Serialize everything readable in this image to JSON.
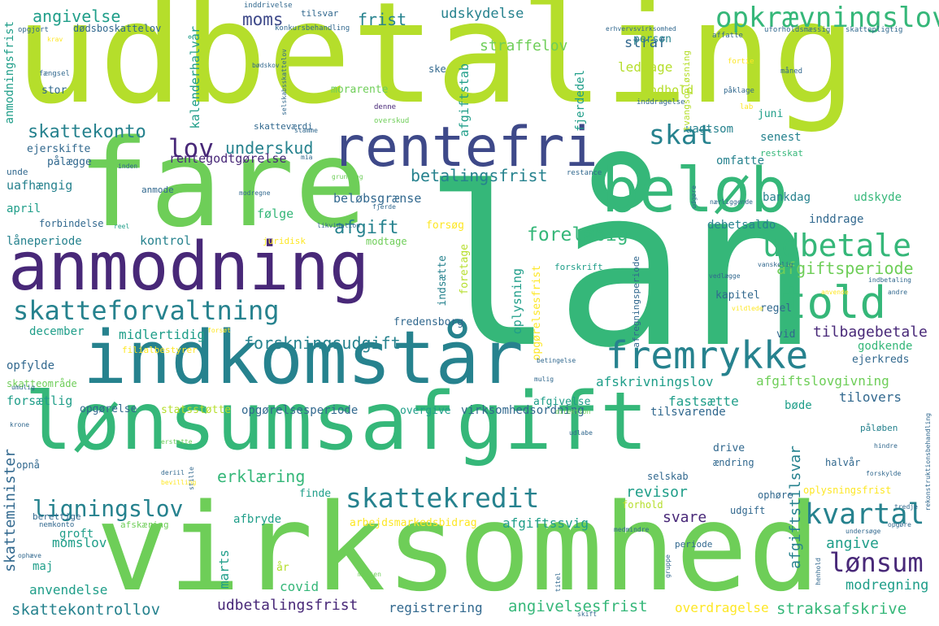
{
  "title": "word cloud",
  "palette": {
    "yellow": "#fde725",
    "lime": "#b5de2b",
    "lightgreen": "#6ece58",
    "green": "#35b779",
    "seagreen": "#1f9e89",
    "teal": "#26828e",
    "steel": "#31688e",
    "slate": "#3e4989",
    "indigo": "#482878",
    "purple": "#440154"
  },
  "words": [
    {
      "text": "udbetaling",
      "color": "#b5de2b"
    },
    {
      "text": "lån",
      "color": "#35b779"
    },
    {
      "text": "fare",
      "color": "#6ece58"
    },
    {
      "text": "lønsumsafgift",
      "color": "#35b779"
    },
    {
      "text": "virksomhed",
      "color": "#6ece58"
    },
    {
      "text": "indkomstår",
      "color": "#26828e"
    },
    {
      "text": "anmodning",
      "color": "#482878"
    },
    {
      "text": "rentefri",
      "color": "#3e4989"
    },
    {
      "text": "beløb",
      "color": "#35b779"
    },
    {
      "text": "told",
      "color": "#35b779"
    },
    {
      "text": "fremrykke",
      "color": "#26828e"
    },
    {
      "text": "skatteforvaltning",
      "color": "#26828e"
    },
    {
      "text": "skattekredit",
      "color": "#26828e"
    },
    {
      "text": "udbetale",
      "color": "#35b779"
    },
    {
      "text": "opkrævningslov",
      "color": "#35b779"
    },
    {
      "text": "kvartal",
      "color": "#26828e"
    },
    {
      "text": "ligningslov",
      "color": "#26828e"
    },
    {
      "text": "lønsum",
      "color": "#482878"
    },
    {
      "text": "lov",
      "color": "#482878"
    },
    {
      "text": "skat",
      "color": "#26828e"
    },
    {
      "text": "moms",
      "color": "#3e4989"
    },
    {
      "text": "angivelse",
      "color": "#1f9e89"
    },
    {
      "text": "frist",
      "color": "#26828e"
    },
    {
      "text": "udskydelse",
      "color": "#26828e"
    },
    {
      "text": "straffelov",
      "color": "#6ece58"
    },
    {
      "text": "straf",
      "color": "#31688e"
    },
    {
      "text": "skattekonto",
      "color": "#26828e"
    },
    {
      "text": "underskud",
      "color": "#26828e"
    },
    {
      "text": "betalingsfrist",
      "color": "#26828e"
    },
    {
      "text": "afgift",
      "color": "#26828e"
    },
    {
      "text": "foreløbig",
      "color": "#35b779"
    },
    {
      "text": "afgiftsperiode",
      "color": "#6ece58"
    },
    {
      "text": "forskningsudgift",
      "color": "#26828e"
    },
    {
      "text": "erklæring",
      "color": "#35b779"
    },
    {
      "text": "revisor",
      "color": "#1f9e89"
    },
    {
      "text": "svare",
      "color": "#482878"
    },
    {
      "text": "angive",
      "color": "#1f9e89"
    },
    {
      "text": "angivelsesfrist",
      "color": "#35b779"
    },
    {
      "text": "straksafskrive",
      "color": "#35b779"
    },
    {
      "text": "udbetalingsfrist",
      "color": "#482878"
    },
    {
      "text": "registrering",
      "color": "#31688e"
    },
    {
      "text": "overdragelse",
      "color": "#fde725"
    },
    {
      "text": "skattekontrollov",
      "color": "#26828e"
    },
    {
      "text": "skatteminister",
      "color": "#31688e"
    },
    {
      "text": "anvendelse",
      "color": "#1f9e89"
    },
    {
      "text": "momslov",
      "color": "#1f9e89"
    },
    {
      "text": "marts",
      "color": "#1f9e89"
    },
    {
      "text": "covid",
      "color": "#35b779"
    },
    {
      "text": "år",
      "color": "#b5de2b"
    },
    {
      "text": "modregning",
      "color": "#1f9e89"
    },
    {
      "text": "afgiftstilsvar",
      "color": "#26828e"
    },
    {
      "text": "afgiftssvig",
      "color": "#1f9e89"
    },
    {
      "text": "arbejdsmarkedsbidrag",
      "color": "#fde725"
    },
    {
      "text": "tilbagebetale",
      "color": "#482878"
    },
    {
      "text": "afskrivningslov",
      "color": "#1f9e89"
    },
    {
      "text": "afgiftslovgivning",
      "color": "#6ece58"
    },
    {
      "text": "fastsætte",
      "color": "#1f9e89"
    },
    {
      "text": "tilovers",
      "color": "#31688e"
    },
    {
      "text": "bøde",
      "color": "#1f9e89"
    },
    {
      "text": "tilsvarende",
      "color": "#31688e"
    },
    {
      "text": "virksomhedsordning",
      "color": "#31688e"
    },
    {
      "text": "opgørelsesperiode",
      "color": "#31688e"
    },
    {
      "text": "overgive",
      "color": "#1f9e89"
    },
    {
      "text": "afgivelse",
      "color": "#1f9e89"
    },
    {
      "text": "opgørelse",
      "color": "#31688e"
    },
    {
      "text": "statsstøtte",
      "color": "#b5de2b"
    },
    {
      "text": "forsætlig",
      "color": "#1f9e89"
    },
    {
      "text": "skatteområde",
      "color": "#6ece58"
    },
    {
      "text": "opfylde",
      "color": "#31688e"
    },
    {
      "text": "december",
      "color": "#1f9e89"
    },
    {
      "text": "midlertidig",
      "color": "#1f9e89"
    },
    {
      "text": "fredensborg",
      "color": "#31688e"
    },
    {
      "text": "oplysning",
      "color": "#1f9e89"
    },
    {
      "text": "opgørelsesfrist",
      "color": "#fde725"
    },
    {
      "text": "kapitel",
      "color": "#31688e"
    },
    {
      "text": "regel",
      "color": "#31688e"
    },
    {
      "text": "vid",
      "color": "#31688e"
    },
    {
      "text": "godkende",
      "color": "#35b779"
    },
    {
      "text": "ejerkreds",
      "color": "#31688e"
    },
    {
      "text": "kontrol",
      "color": "#26828e"
    },
    {
      "text": "låneperiode",
      "color": "#26828e"
    },
    {
      "text": "følge",
      "color": "#35b779"
    },
    {
      "text": "april",
      "color": "#1f9e89"
    },
    {
      "text": "beløbsgrænse",
      "color": "#31688e"
    },
    {
      "text": "uafhængig",
      "color": "#26828e"
    },
    {
      "text": "rentegodtgørelse",
      "color": "#482878"
    },
    {
      "text": "omfatte",
      "color": "#26828e"
    },
    {
      "text": "senest",
      "color": "#26828e"
    },
    {
      "text": "uagtsom",
      "color": "#26828e"
    },
    {
      "text": "bankdag",
      "color": "#26828e"
    },
    {
      "text": "debetsaldo",
      "color": "#26828e"
    },
    {
      "text": "inddrage",
      "color": "#31688e"
    },
    {
      "text": "udskyde",
      "color": "#35b779"
    },
    {
      "text": "restskat",
      "color": "#35b779"
    },
    {
      "text": "juni",
      "color": "#1f9e89"
    },
    {
      "text": "indhold",
      "color": "#b5de2b"
    },
    {
      "text": "ledsage",
      "color": "#b5de2b"
    },
    {
      "text": "person",
      "color": "#26828e"
    },
    {
      "text": "afgiftstab",
      "color": "#1f9e89"
    },
    {
      "text": "fjerdedel",
      "color": "#1f9e89"
    },
    {
      "text": "kalenderhalvår",
      "color": "#1f9e89"
    },
    {
      "text": "anmodningsfrist",
      "color": "#1f9e89"
    },
    {
      "text": "dødsboskattelov",
      "color": "#31688e"
    },
    {
      "text": "tilsvar",
      "color": "#31688e"
    },
    {
      "text": "morarente",
      "color": "#6ece58"
    },
    {
      "text": "ske",
      "color": "#31688e"
    },
    {
      "text": "stor",
      "color": "#31688e"
    },
    {
      "text": "ejerskifte",
      "color": "#31688e"
    },
    {
      "text": "pålægge",
      "color": "#31688e"
    },
    {
      "text": "skatteværdi",
      "color": "#31688e"
    },
    {
      "text": "unde",
      "color": "#31688e"
    },
    {
      "text": "anmode",
      "color": "#31688e"
    },
    {
      "text": "forbindelse",
      "color": "#31688e"
    },
    {
      "text": "forsøg",
      "color": "#fde725"
    },
    {
      "text": "foretage",
      "color": "#b5de2b"
    },
    {
      "text": "indsætte",
      "color": "#26828e"
    },
    {
      "text": "modtage",
      "color": "#6ece58"
    },
    {
      "text": "juridisk",
      "color": "#fde725"
    },
    {
      "text": "forskrift",
      "color": "#1f9e89"
    },
    {
      "text": "filialbestyrer",
      "color": "#fde725"
    },
    {
      "text": "afbryde",
      "color": "#1f9e89"
    },
    {
      "text": "groft",
      "color": "#1f9e89"
    },
    {
      "text": "maj",
      "color": "#1f9e89"
    },
    {
      "text": "finde",
      "color": "#1f9e89"
    },
    {
      "text": "drive",
      "color": "#31688e"
    },
    {
      "text": "ændring",
      "color": "#31688e"
    },
    {
      "text": "selskab",
      "color": "#31688e"
    },
    {
      "text": "halvår",
      "color": "#31688e"
    },
    {
      "text": "påløben",
      "color": "#26828e"
    },
    {
      "text": "ophøre",
      "color": "#31688e"
    },
    {
      "text": "oplysningsfrist",
      "color": "#fde725"
    },
    {
      "text": "forhold",
      "color": "#b5de2b"
    },
    {
      "text": "udgift",
      "color": "#31688e"
    },
    {
      "text": "periode",
      "color": "#31688e"
    },
    {
      "text": "tvangsopløsning",
      "color": "#b5de2b"
    },
    {
      "text": "afregningsperiode",
      "color": "#31688e"
    },
    {
      "text": "opnå",
      "color": "#31688e"
    },
    {
      "text": "berettige",
      "color": "#31688e"
    },
    {
      "text": "afskæring",
      "color": "#6ece58"
    },
    {
      "text": "nemkonto",
      "color": "#31688e"
    },
    {
      "text": "opgjort",
      "color": "#31688e"
    },
    {
      "text": "fængsel",
      "color": "#31688e"
    },
    {
      "text": "konkursbehandling",
      "color": "#31688e"
    },
    {
      "text": "inddrivelse",
      "color": "#31688e"
    },
    {
      "text": "erhvervsvirksomhed",
      "color": "#31688e"
    },
    {
      "text": "affatte",
      "color": "#31688e"
    },
    {
      "text": "uforholdsmæssig",
      "color": "#31688e"
    },
    {
      "text": "skattepligtig",
      "color": "#31688e"
    },
    {
      "text": "måned",
      "color": "#31688e"
    },
    {
      "text": "påklage",
      "color": "#31688e"
    },
    {
      "text": "fortie",
      "color": "#fde725"
    },
    {
      "text": "lab",
      "color": "#fde725"
    },
    {
      "text": "inddragelse",
      "color": "#31688e"
    },
    {
      "text": "overskud",
      "color": "#6ece58"
    },
    {
      "text": "denne",
      "color": "#482878"
    },
    {
      "text": "stamme",
      "color": "#31688e"
    },
    {
      "text": "mia",
      "color": "#31688e"
    },
    {
      "text": "inden",
      "color": "#31688e"
    },
    {
      "text": "grundlag",
      "color": "#6ece58"
    },
    {
      "text": "modregne",
      "color": "#31688e"
    },
    {
      "text": "fjerde",
      "color": "#31688e"
    },
    {
      "text": "restance",
      "color": "#31688e"
    },
    {
      "text": "udgøre",
      "color": "#31688e"
    },
    {
      "text": "nærliggende",
      "color": "#31688e"
    },
    {
      "text": "reel",
      "color": "#1f9e89"
    },
    {
      "text": "likvidation",
      "color": "#31688e"
    },
    {
      "text": "vedlægge",
      "color": "#31688e"
    },
    {
      "text": "vanskelig",
      "color": "#31688e"
    },
    {
      "text": "indbetaling",
      "color": "#31688e"
    },
    {
      "text": "anvende",
      "color": "#fde725"
    },
    {
      "text": "andre",
      "color": "#31688e"
    },
    {
      "text": "forsøt",
      "color": "#fde725"
    },
    {
      "text": "vildlede",
      "color": "#fde725"
    },
    {
      "text": "betingelse",
      "color": "#31688e"
    },
    {
      "text": "mulig",
      "color": "#31688e"
    },
    {
      "text": "direktion",
      "color": "#6ece58"
    },
    {
      "text": "udlabe",
      "color": "#31688e"
    },
    {
      "text": "erstatte",
      "color": "#6ece58"
    },
    {
      "text": "stille",
      "color": "#31688e"
    },
    {
      "text": "bevilling",
      "color": "#fde725"
    },
    {
      "text": "deriil",
      "color": "#31688e"
    },
    {
      "text": "krone",
      "color": "#31688e"
    },
    {
      "text": "umulig",
      "color": "#31688e"
    },
    {
      "text": "ophæve",
      "color": "#31688e"
    },
    {
      "text": "medmindre",
      "color": "#31688e"
    },
    {
      "text": "morten",
      "color": "#6ece58"
    },
    {
      "text": "titel",
      "color": "#31688e"
    },
    {
      "text": "gruppe",
      "color": "#31688e"
    },
    {
      "text": "opgøre",
      "color": "#31688e"
    },
    {
      "text": "undersøge",
      "color": "#31688e"
    },
    {
      "text": "forskylde",
      "color": "#31688e"
    },
    {
      "text": "hindre",
      "color": "#31688e"
    },
    {
      "text": "henhold",
      "color": "#31688e"
    },
    {
      "text": "rekonstruktionsbehandling",
      "color": "#31688e"
    },
    {
      "text": "tredje",
      "color": "#31688e"
    },
    {
      "text": "skift",
      "color": "#31688e"
    },
    {
      "text": "krav",
      "color": "#fde725"
    },
    {
      "text": "bødskov",
      "color": "#31688e"
    },
    {
      "text": "selskabsskattelov",
      "color": "#31688e"
    }
  ]
}
